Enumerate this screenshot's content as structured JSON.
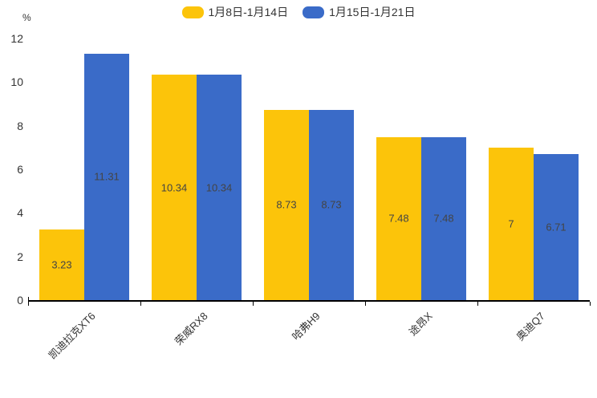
{
  "chart_data": {
    "type": "bar",
    "title": "",
    "unit_label": "%",
    "categories": [
      "凯迪拉克XT6",
      "荣威RX8",
      "哈弗H9",
      "途昂X",
      "奥迪Q7"
    ],
    "series": [
      {
        "name": "1月8日-1月14日",
        "color": "#FCC40A",
        "values": [
          3.23,
          10.34,
          8.73,
          7.48,
          7
        ]
      },
      {
        "name": "1月15日-1月21日",
        "color": "#3A6BC8",
        "values": [
          11.31,
          10.34,
          8.73,
          7.48,
          6.71
        ]
      }
    ],
    "value_labels": [
      [
        "3.23",
        "10.34",
        "8.73",
        "7.48",
        "7"
      ],
      [
        "11.31",
        "10.34",
        "8.73",
        "7.48",
        "6.71"
      ]
    ],
    "ylim": [
      0,
      12
    ],
    "yticks": [
      0,
      2,
      4,
      6,
      8,
      10,
      12
    ],
    "grid": false,
    "legend_position": "top",
    "axis_color": "#000000",
    "tick_label_color": "#333333",
    "value_label_color": "#444444"
  }
}
